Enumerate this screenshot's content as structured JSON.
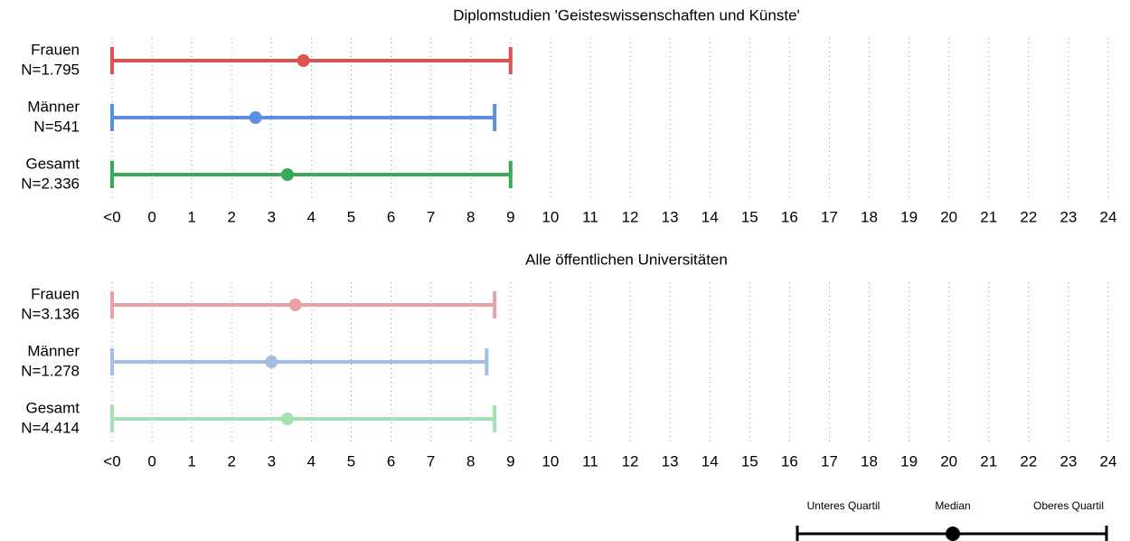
{
  "chart_data": [
    {
      "type": "range",
      "title": "Diplomstudien 'Geisteswissenschaften und Künste'",
      "categories": [
        "Frauen",
        "Männer",
        "Gesamt"
      ],
      "n_labels": [
        "N=1.795",
        "N=541",
        "N=2.336"
      ],
      "colors": [
        "#e05252",
        "#5b8fe3",
        "#3aa95a"
      ],
      "lower": [
        -1,
        -1,
        -1
      ],
      "median": [
        3.8,
        2.6,
        3.4
      ],
      "upper": [
        9,
        8.6,
        9
      ],
      "xlim": [
        -1,
        24
      ],
      "xticks": [
        {
          "value": -1,
          "label": "<0"
        },
        0,
        1,
        2,
        3,
        4,
        5,
        6,
        7,
        8,
        9,
        10,
        11,
        12,
        13,
        14,
        15,
        16,
        17,
        18,
        19,
        20,
        21,
        22,
        23,
        24
      ],
      "grid": true
    },
    {
      "type": "range",
      "title": "Alle öffentlichen Universitäten",
      "categories": [
        "Frauen",
        "Männer",
        "Gesamt"
      ],
      "n_labels": [
        "N=3.136",
        "N=1.278",
        "N=4.414"
      ],
      "colors": [
        "#e8a2a2",
        "#a2bde6",
        "#a3e3b3"
      ],
      "lower": [
        -1,
        -1,
        -1
      ],
      "median": [
        3.6,
        3.0,
        3.4
      ],
      "upper": [
        8.6,
        8.4,
        8.6
      ],
      "xlim": [
        -1,
        24
      ],
      "xticks": [
        {
          "value": -1,
          "label": "<0"
        },
        0,
        1,
        2,
        3,
        4,
        5,
        6,
        7,
        8,
        9,
        10,
        11,
        12,
        13,
        14,
        15,
        16,
        17,
        18,
        19,
        20,
        21,
        22,
        23,
        24
      ],
      "grid": true
    }
  ],
  "legend": {
    "labels": [
      "Unteres Quartil",
      "Median",
      "Oberes Quartil"
    ],
    "color": "#000000"
  }
}
